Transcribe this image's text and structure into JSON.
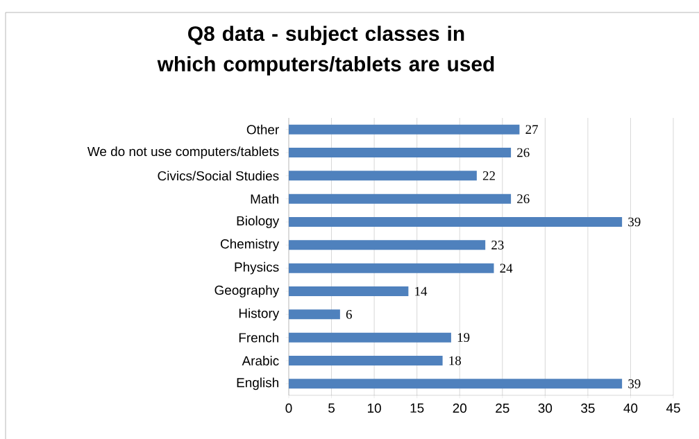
{
  "chart_data": {
    "type": "bar",
    "orientation": "horizontal",
    "title": "Q8 data - subject classes in which computers/tablets are used",
    "categories": [
      "Other",
      "We do not use computers/tablets",
      "Civics/Social Studies",
      "Math",
      "Biology",
      "Chemistry",
      "Physics",
      "Geography",
      "History",
      "French",
      "Arabic",
      "English"
    ],
    "values": [
      27,
      26,
      22,
      26,
      39,
      23,
      24,
      14,
      6,
      19,
      18,
      39
    ],
    "color": "#4f81bd",
    "xlim": [
      0,
      45
    ],
    "xticks": [
      0,
      5,
      10,
      15,
      20,
      25,
      30,
      35,
      40,
      45
    ],
    "grid": "x",
    "data_labels": true
  }
}
